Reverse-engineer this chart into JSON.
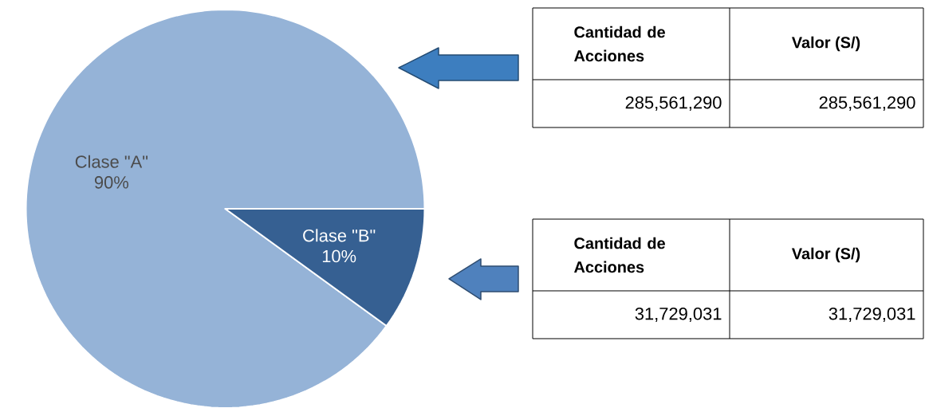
{
  "chart_data": {
    "type": "pie",
    "categories": [
      "Clase \"A\"",
      "Clase \"B\""
    ],
    "values": [
      90,
      10
    ],
    "value_labels": [
      "90%",
      "10%"
    ],
    "colors": [
      "#95b3d7",
      "#366092"
    ],
    "annotations": [
      "Cantidad de Acciones",
      "Valor (S/)",
      "285,561,290",
      "285,561,290",
      "Cantidad de Acciones",
      "Valor (S/)",
      "31,729,031",
      "31,729,031"
    ]
  }
}
